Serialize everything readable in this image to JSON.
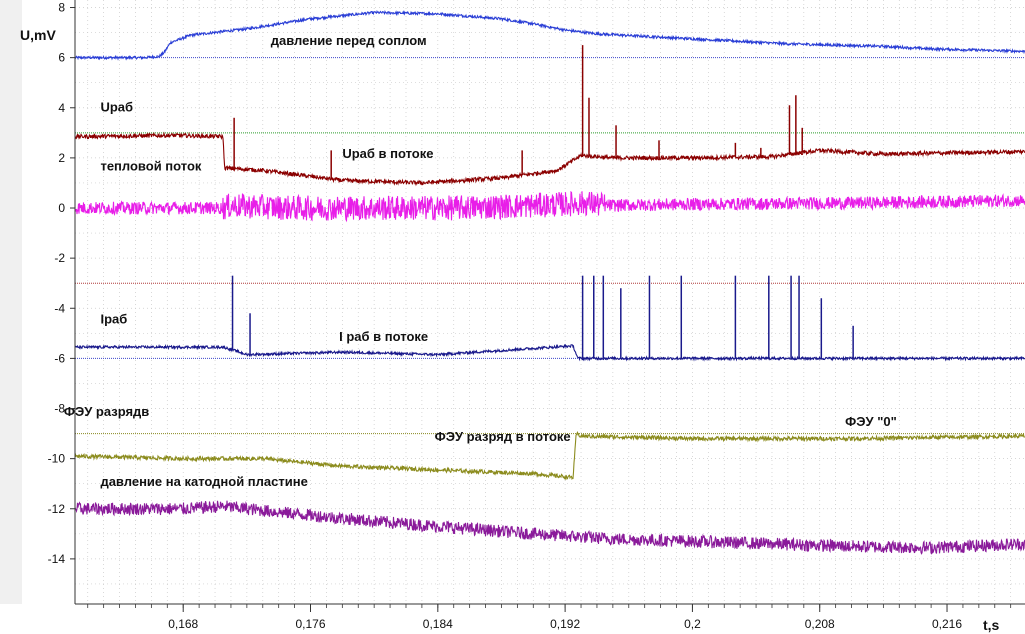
{
  "chart_data": {
    "type": "line",
    "xlabel": "t,s",
    "ylabel": "U,mV",
    "xlim": [
      0.1612,
      0.2209
    ],
    "ylim": [
      -15.8,
      8.3
    ],
    "grid": true,
    "xticks": [
      "0,168",
      "0,176",
      "0,184",
      "0,192",
      "0,2",
      "0,208",
      "0,216"
    ],
    "xtick_values": [
      0.168,
      0.176,
      0.184,
      0.192,
      0.2,
      0.208,
      0.216
    ],
    "yticks": [
      "8",
      "6",
      "4",
      "2",
      "0",
      "-2",
      "-4",
      "-6",
      "-8",
      "-10",
      "-12",
      "-14"
    ],
    "ytick_values": [
      8,
      6,
      4,
      2,
      0,
      -2,
      -4,
      -6,
      -8,
      -10,
      -12,
      -14
    ],
    "reference_lines": [
      {
        "y": 6.0,
        "color": "#3f48cc"
      },
      {
        "y": 3.0,
        "color": "#2e9e2e"
      },
      {
        "y": -3.0,
        "color": "#b03a3a"
      },
      {
        "y": -6.0,
        "color": "#3f48cc"
      },
      {
        "y": -9.0,
        "color": "#8a8a20"
      }
    ],
    "series": [
      {
        "color": "#2b3fd6",
        "x": [
          0.1612,
          0.1655,
          0.1665,
          0.1668,
          0.1672,
          0.1685,
          0.172,
          0.176,
          0.18,
          0.184,
          0.188,
          0.19,
          0.192,
          0.194,
          0.197,
          0.2,
          0.203,
          0.206,
          0.209,
          0.212,
          0.215,
          0.218,
          0.2209
        ],
        "y": [
          6.0,
          6.0,
          6.05,
          6.2,
          6.6,
          6.9,
          7.15,
          7.55,
          7.8,
          7.75,
          7.55,
          7.35,
          7.1,
          6.95,
          6.85,
          6.75,
          6.65,
          6.55,
          6.5,
          6.45,
          6.35,
          6.3,
          6.25
        ]
      },
      {
        "color": "#8b0000",
        "x": [
          0.1612,
          0.1675,
          0.1705,
          0.1706,
          0.173,
          0.178,
          0.183,
          0.188,
          0.1915,
          0.193,
          0.195,
          0.2,
          0.205,
          0.208,
          0.212,
          0.216,
          0.2209
        ],
        "y": [
          2.85,
          2.9,
          2.85,
          1.6,
          1.5,
          1.1,
          1.0,
          1.2,
          1.5,
          2.1,
          2.0,
          2.0,
          2.05,
          2.3,
          2.15,
          2.2,
          2.25
        ],
        "spikes": [
          {
            "x": 0.1712,
            "y": 3.6
          },
          {
            "x": 0.1773,
            "y": 2.3
          },
          {
            "x": 0.1893,
            "y": 2.3
          },
          {
            "x": 0.1931,
            "y": 6.5
          },
          {
            "x": 0.1935,
            "y": 4.4
          },
          {
            "x": 0.1952,
            "y": 3.3
          },
          {
            "x": 0.1979,
            "y": 2.7
          },
          {
            "x": 0.2027,
            "y": 2.6
          },
          {
            "x": 0.2043,
            "y": 2.4
          },
          {
            "x": 0.2061,
            "y": 4.1
          },
          {
            "x": 0.2065,
            "y": 4.5
          },
          {
            "x": 0.2069,
            "y": 3.2
          }
        ]
      },
      {
        "color": "#e81ee8",
        "x": [
          0.1612,
          0.1705,
          0.171,
          0.175,
          0.18,
          0.185,
          0.19,
          0.1935,
          0.1945,
          0.2,
          0.21,
          0.2209
        ],
        "y": [
          0.0,
          0.0,
          0.1,
          0.0,
          0.0,
          0.0,
          0.1,
          0.2,
          0.1,
          0.15,
          0.2,
          0.3
        ],
        "noise": [
          {
            "x0": 0.1705,
            "x1": 0.1945,
            "amp": 0.5
          }
        ]
      },
      {
        "color": "#1a1a8c",
        "x": [
          0.1612,
          0.1705,
          0.1708,
          0.172,
          0.178,
          0.184,
          0.19,
          0.1925,
          0.1928,
          0.2209
        ],
        "y": [
          -5.55,
          -5.55,
          -5.6,
          -5.85,
          -5.75,
          -5.85,
          -5.6,
          -5.5,
          -6.0,
          -6.0
        ],
        "spikes": [
          {
            "x": 0.1711,
            "y": -2.7
          },
          {
            "x": 0.1722,
            "y": -4.2
          },
          {
            "x": 0.1931,
            "y": -2.7
          },
          {
            "x": 0.1938,
            "y": -2.7
          },
          {
            "x": 0.1944,
            "y": -2.7
          },
          {
            "x": 0.1955,
            "y": -3.2
          },
          {
            "x": 0.1973,
            "y": -2.7
          },
          {
            "x": 0.1993,
            "y": -2.7
          },
          {
            "x": 0.2027,
            "y": -2.7
          },
          {
            "x": 0.2048,
            "y": -2.7
          },
          {
            "x": 0.2062,
            "y": -2.7
          },
          {
            "x": 0.2067,
            "y": -2.7
          },
          {
            "x": 0.2081,
            "y": -3.6
          },
          {
            "x": 0.2101,
            "y": -4.7
          }
        ]
      },
      {
        "color": "#8c8c1e",
        "x": [
          0.1612,
          0.168,
          0.173,
          0.178,
          0.184,
          0.19,
          0.1925,
          0.1927,
          0.193,
          0.2,
          0.21,
          0.2209
        ],
        "y": [
          -9.9,
          -10.0,
          -10.0,
          -10.3,
          -10.45,
          -10.6,
          -10.75,
          -9.0,
          -9.1,
          -9.2,
          -9.2,
          -9.1
        ]
      },
      {
        "color": "#8a1a9a",
        "x": [
          0.1612,
          0.168,
          0.1705,
          0.175,
          0.18,
          0.185,
          0.19,
          0.195,
          0.2,
          0.205,
          0.21,
          0.215,
          0.2209
        ],
        "y": [
          -12.0,
          -12.0,
          -11.9,
          -12.2,
          -12.5,
          -12.75,
          -13.0,
          -13.2,
          -13.3,
          -13.4,
          -13.5,
          -13.55,
          -13.4
        ]
      }
    ],
    "annotations": [
      {
        "text": "давление перед соплом",
        "x": 0.1735,
        "y": 6.5
      },
      {
        "text": "Uраб",
        "x": 0.1628,
        "y": 3.85
      },
      {
        "text": "Uраб в потоке",
        "x": 0.178,
        "y": 2.0
      },
      {
        "text": "тепловой поток",
        "x": 0.1628,
        "y": 1.5
      },
      {
        "text": "Iраб",
        "x": 0.1628,
        "y": -4.6
      },
      {
        "text": "I раб в потоке",
        "x": 0.1778,
        "y": -5.3
      },
      {
        "text": "ФЭУ  разрядв",
        "x": 0.1605,
        "y": -8.3
      },
      {
        "text": "ФЭУ  разряд  в потоке",
        "x": 0.1838,
        "y": -9.3
      },
      {
        "text": "ФЭУ \"0\"",
        "x": 0.2096,
        "y": -8.7
      },
      {
        "text": "давление   на катодной пластине",
        "x": 0.1628,
        "y": -11.1
      }
    ]
  }
}
